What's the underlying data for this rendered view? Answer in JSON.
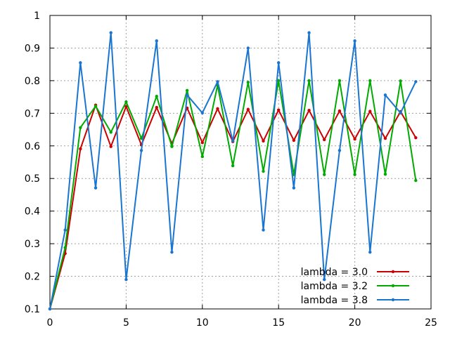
{
  "chart_data": {
    "type": "line",
    "title": "",
    "xlabel": "",
    "ylabel": "",
    "xlim": [
      0,
      25
    ],
    "ylim": [
      0.1,
      1
    ],
    "xticks": [
      0,
      5,
      10,
      15,
      20,
      25
    ],
    "yticks": [
      0.1,
      0.2,
      0.3,
      0.4,
      0.5,
      0.6,
      0.7,
      0.8,
      0.9,
      1
    ],
    "xtick_labels": [
      "0",
      "5",
      "10",
      "15",
      "20",
      "25"
    ],
    "ytick_labels": [
      "0.1",
      "0.2",
      "0.3",
      "0.4",
      "0.5",
      "0.6",
      "0.7",
      "0.8",
      "0.9",
      "1"
    ],
    "grid": true,
    "legend_position": "bottom-right",
    "x": [
      0,
      1,
      2,
      3,
      4,
      5,
      6,
      7,
      8,
      9,
      10,
      11,
      12,
      13,
      14,
      15,
      16,
      17,
      18,
      19,
      20,
      21,
      22,
      23,
      24
    ],
    "series": [
      {
        "name": "lambda = 3.0",
        "color": "#cc0000",
        "values": [
          0.1,
          0.27,
          0.591,
          0.725,
          0.598,
          0.721,
          0.603,
          0.718,
          0.607,
          0.716,
          0.61,
          0.714,
          0.613,
          0.712,
          0.615,
          0.71,
          0.617,
          0.709,
          0.619,
          0.707,
          0.621,
          0.706,
          0.623,
          0.705,
          0.625
        ]
      },
      {
        "name": "lambda = 3.2",
        "color": "#00aa00",
        "values": [
          0.1,
          0.288,
          0.656,
          0.722,
          0.642,
          0.735,
          0.623,
          0.752,
          0.598,
          0.77,
          0.567,
          0.786,
          0.539,
          0.795,
          0.522,
          0.8,
          0.512,
          0.8,
          0.512,
          0.8,
          0.512,
          0.8,
          0.513,
          0.799,
          0.494
        ]
      },
      {
        "name": "lambda = 3.8",
        "color": "#1a75d1",
        "values": [
          0.1,
          0.342,
          0.855,
          0.471,
          0.947,
          0.19,
          0.586,
          0.922,
          0.274,
          0.756,
          0.701,
          0.797,
          0.615,
          0.9,
          0.342,
          0.855,
          0.471,
          0.947,
          0.19,
          0.586,
          0.922,
          0.274,
          0.756,
          0.701,
          0.797
        ]
      }
    ]
  }
}
